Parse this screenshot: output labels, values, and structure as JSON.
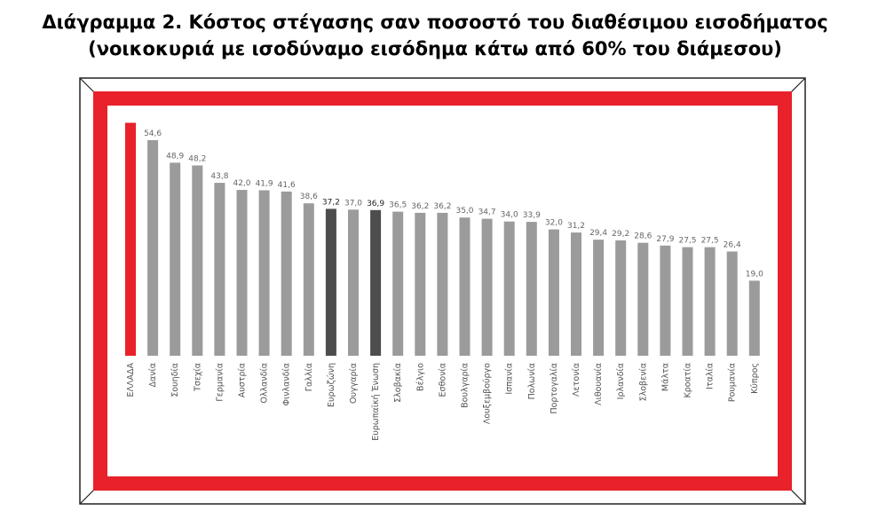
{
  "figure": {
    "title_line1": "Διάγραμμα 2. Κόστος στέγασης σαν ποσοστό του διαθέσιμου εισοδήματος",
    "title_line2": "(νοικοκυριά με ισοδύναμο εισόδημα κάτω από 60% του διάμεσου)"
  },
  "colors": {
    "frame_red": "#e8212a",
    "highlight_red": "#e8212a",
    "bar_gray": "#9b9b9b",
    "bar_dark": "#4d4d4d"
  },
  "chart_data": {
    "type": "bar",
    "title": "",
    "xlabel": "",
    "ylabel": "",
    "ylim": [
      0,
      60
    ],
    "grid": false,
    "categories": [
      "ΕΛΛΑΔΑ",
      "Δανία",
      "Σουηδία",
      "Τσεχία",
      "Γερμανία",
      "Αυστρία",
      "Ολλανδία",
      "Φινλανδία",
      "Γαλλία",
      "Ευρωζώνη",
      "Ουγγαρία",
      "Ευρωπαϊκή Ένωση",
      "Σλοβακία",
      "Βέλγιο",
      "Εσθονία",
      "Βουλγαρία",
      "Λουξεμβούργο",
      "Ισπανία",
      "Πολωνία",
      "Πορτογαλία",
      "Λετονία",
      "Λιθουανία",
      "Ιρλανδία",
      "Σλοβενία",
      "Μάλτα",
      "Κροατία",
      "Ιταλία",
      "Ρουμανία",
      "Κύπρος"
    ],
    "values": [
      59.0,
      54.6,
      48.9,
      48.2,
      43.8,
      42.0,
      41.9,
      41.6,
      38.6,
      37.2,
      37.0,
      36.9,
      36.5,
      36.2,
      36.2,
      35.0,
      34.7,
      34.0,
      33.9,
      32.0,
      31.2,
      29.4,
      29.2,
      28.6,
      27.9,
      27.5,
      27.5,
      26.4,
      19.0
    ],
    "value_labels": [
      "",
      "54,6",
      "48,9",
      "48,2",
      "43,8",
      "42,0",
      "41,9",
      "41,6",
      "38,6",
      "37,2",
      "37,0",
      "36,9",
      "36,5",
      "36,2",
      "36,2",
      "35,0",
      "34,7",
      "34,0",
      "33,9",
      "32,0",
      "31,2",
      "29,4",
      "29,2",
      "28,6",
      "27,9",
      "27,5",
      "27,5",
      "26,4",
      "19,0"
    ],
    "bar_styles": [
      "highlight",
      "normal",
      "normal",
      "normal",
      "normal",
      "normal",
      "normal",
      "normal",
      "normal",
      "dark",
      "normal",
      "dark",
      "normal",
      "normal",
      "normal",
      "normal",
      "normal",
      "normal",
      "normal",
      "normal",
      "normal",
      "normal",
      "normal",
      "normal",
      "normal",
      "normal",
      "normal",
      "normal",
      "normal"
    ]
  }
}
